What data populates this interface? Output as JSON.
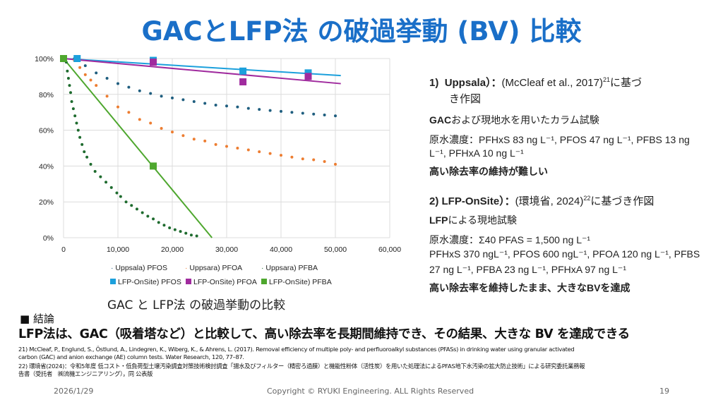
{
  "title": "GACとLFP法 の破過挙動 (BV) 比較",
  "chart_data": {
    "type": "scatter",
    "title": "",
    "xlabel": "",
    "ylabel": "",
    "xlim": [
      0,
      60000
    ],
    "ylim": [
      0,
      100
    ],
    "x_ticks": [
      "0",
      "10,000",
      "20,000",
      "30,000",
      "40,000",
      "50,000",
      "60,000"
    ],
    "y_ticks": [
      "0%",
      "20%",
      "40%",
      "60%",
      "80%",
      "100%"
    ],
    "grid": true,
    "legend_position": "bottom",
    "series": [
      {
        "name": "Uppsala) PFOS",
        "style": "dots",
        "color": "#1f5e7f",
        "x": [
          2000,
          4000,
          6000,
          8000,
          10000,
          12000,
          14000,
          16000,
          18000,
          20000,
          22000,
          24000,
          26000,
          28000,
          30000,
          32000,
          34000,
          36000,
          38000,
          40000,
          42000,
          44000,
          46000,
          48000,
          50000
        ],
        "y": [
          100,
          96,
          92,
          89,
          86,
          84,
          82,
          80.5,
          79,
          78,
          77,
          76,
          75,
          74,
          73.5,
          73,
          72.2,
          71.6,
          71,
          70.5,
          70,
          69.5,
          69,
          68.5,
          68
        ]
      },
      {
        "name": "Uppsara) PFOA",
        "style": "dots",
        "color": "#ed7d31",
        "x": [
          2000,
          3000,
          4000,
          5000,
          6000,
          8000,
          10000,
          12000,
          14000,
          16000,
          18000,
          20000,
          22000,
          24000,
          26000,
          28000,
          30000,
          32000,
          34000,
          36000,
          38000,
          40000,
          42000,
          44000,
          46000,
          48000,
          50000
        ],
        "y": [
          99,
          95,
          91,
          88,
          85,
          79,
          73,
          70,
          66,
          64,
          61,
          59,
          57,
          55,
          54,
          52,
          51,
          50,
          49,
          48,
          47,
          46,
          45,
          44,
          43.5,
          42.5,
          41
        ]
      },
      {
        "name": "Uppsara) PFBA",
        "style": "dots",
        "color": "#1e6b2e",
        "x": [
          500,
          700,
          900,
          1100,
          1300,
          1500,
          1800,
          2100,
          2400,
          2700,
          3000,
          3400,
          3800,
          4300,
          5000,
          5800,
          6800,
          7800,
          8800,
          9800,
          10500,
          11500,
          12500,
          13500,
          14500,
          15500,
          16500,
          17500,
          18500,
          19500,
          20500,
          21500,
          22500,
          23500,
          24500
        ],
        "y": [
          98,
          93,
          89,
          85,
          81,
          76,
          72,
          68,
          64,
          60,
          56,
          52,
          48,
          45,
          41,
          37,
          34,
          31,
          28,
          25,
          23,
          20,
          18,
          16,
          14,
          12,
          10.5,
          8.5,
          7,
          5.5,
          4.5,
          3.5,
          2.5,
          1.5,
          1
        ]
      },
      {
        "name": "LFP-OnSite) PFOS",
        "style": "square",
        "color": "#1ca0dc",
        "x": [
          2500,
          16500,
          33000,
          45000
        ],
        "y": [
          100,
          99,
          93,
          92
        ],
        "trend": [
          [
            0,
            100
          ],
          [
            51000,
            90.5
          ]
        ]
      },
      {
        "name": "LFP-OnSite) PFOA",
        "style": "square",
        "color": "#a02b9e",
        "x": [
          16500,
          33000,
          45000
        ],
        "y": [
          98,
          87,
          90
        ],
        "trend": [
          [
            0,
            100
          ],
          [
            51000,
            86
          ]
        ]
      },
      {
        "name": "LFP-OnSite) PFBA",
        "style": "square",
        "color": "#4ea72e",
        "x": [
          0,
          16500
        ],
        "y": [
          100,
          40
        ],
        "trend": [
          [
            0,
            100
          ],
          [
            27300,
            0
          ]
        ]
      }
    ]
  },
  "chart_caption": "GAC と LFP法 の破過挙動の比較",
  "right": {
    "s1_num": "1)",
    "s1_head_bold": "Uppsala）：",
    "s1_head_rest": "(McCleaf  et al., 2017)",
    "s1_sup": "21",
    "s1_head_tail": "に基づ",
    "s1_head_line2": "き作図",
    "s1_desc_bold": "GAC",
    "s1_desc_rest": "および現地水を用いたカラム試験",
    "s1_conc_line1": "原水濃度：PFHxS 83 ng L⁻¹, PFOS 47 ng L⁻¹, PFBS 13 ng",
    "s1_conc_line2": "L⁻¹, PFHxA 10 ng L⁻¹",
    "s1_result": "高い除去率の維持が難しい",
    "s2_head_bold": "2) LFP-OnSite）：",
    "s2_head_rest": "(環境省, 2024)",
    "s2_sup": "22",
    "s2_head_tail": "に基づき作図",
    "s2_desc_bold": "LFP",
    "s2_desc_rest": "による現地試験",
    "s2_conc_line1": "原水濃度：Σ40 PFAS = 1,500 ng L⁻¹",
    "s2_conc_line2": "PFHxS 370 ngL⁻¹, PFOS 600 ngL⁻¹, PFOA 120 ng L⁻¹, PFBS",
    "s2_conc_line3": "27 ng L⁻¹, PFBA 23 ng L⁻¹,  PFHxA 97 ng L⁻¹",
    "s2_result": "高い除去率を維持したまま、大きなBVを達成"
  },
  "conclusion_heading": "■ 結論",
  "conclusion": "LFP法は、GAC（吸着塔など）と比較して、高い除去率を長期間維持でき、その結果、大きな BV を達成できる",
  "refs": [
    "21) McCleaf, P., Englund, S., Östlund, A., Lindegren, K., Wiberg, K., & Ahrens, L. (2017). Removal efficiency of multiple poly- and perfluoroalkyl substances (PFASs) in drinking water using granular activated",
    "carbon (GAC) and anion exchange (AE) column tests. Water Research, 120, 77–87.",
    "22) 環境省(2024)：令和5年度 低コスト・低負荷型土壌汚染調査対策技術検討調査「揚水及びフィルター（精密ろ過膜）と機能性粉体（活性炭）を用いた処理法によるPFAS地下水汚染の拡大防止技術」による研究委託業務報",
    "告書（受託者　㈱流機エンジニアリング），同 公表版"
  ],
  "footer": {
    "date": "2026/1/29",
    "copyright": "Copyright © RYUKI Engineering. ALL Rights Reserved",
    "page": "19"
  }
}
